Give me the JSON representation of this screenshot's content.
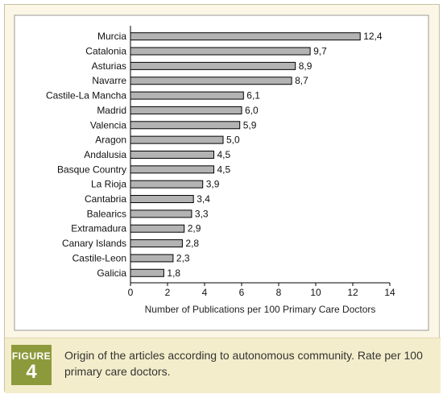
{
  "figure": {
    "badge_word": "FIGURE",
    "badge_number": "4",
    "caption": "Origin of the articles according to autonomous community. Rate per 100 primary care doctors."
  },
  "colors": {
    "bar_fill": "#b3b3b3",
    "frame_background": "#fbf6e5",
    "caption_band": "#f4edcb",
    "badge": "#8d9a3c"
  },
  "chart_data": {
    "type": "bar",
    "orientation": "horizontal",
    "categories": [
      "Murcia",
      "Catalonia",
      "Asturias",
      "Navarre",
      "Castile-La Mancha",
      "Madrid",
      "Valencia",
      "Aragon",
      "Andalusia",
      "Basque Country",
      "La Rioja",
      "Cantabria",
      "Balearics",
      "Extramadura",
      "Canary Islands",
      "Castile-Leon",
      "Galicia"
    ],
    "values": [
      12.4,
      9.7,
      8.9,
      8.7,
      6.1,
      6.0,
      5.9,
      5.0,
      4.5,
      4.5,
      3.9,
      3.4,
      3.3,
      2.9,
      2.8,
      2.3,
      1.8
    ],
    "value_labels": [
      "12,4",
      "9,7",
      "8,9",
      "8,7",
      "6,1",
      "6,0",
      "5,9",
      "5,0",
      "4,5",
      "4,5",
      "3,9",
      "3,4",
      "3,3",
      "2,9",
      "2,8",
      "2,3",
      "1,8"
    ],
    "xlabel": "Number of Publications per 100 Primary Care Doctors",
    "ylabel": "",
    "title": "",
    "xlim": [
      0,
      14
    ],
    "xticks": [
      0,
      2,
      4,
      6,
      8,
      10,
      12,
      14
    ],
    "grid": false,
    "legend": "none"
  }
}
